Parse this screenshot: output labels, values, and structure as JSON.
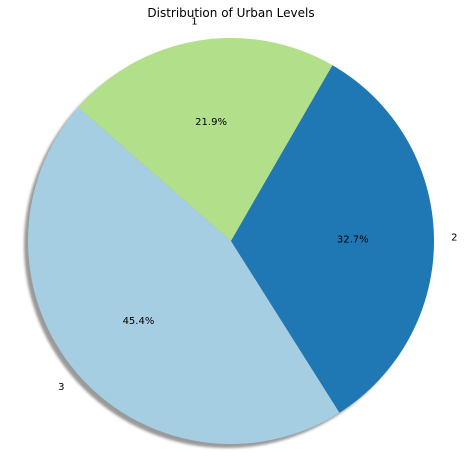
{
  "chart_data": {
    "type": "pie",
    "title": "Distribution of Urban Levels",
    "shadow": true,
    "start_angle_deg": 60,
    "direction": "counterclockwise",
    "slices": [
      {
        "label": "1",
        "value": 21.9,
        "pct_label": "21.9%",
        "color": "#b2df8a"
      },
      {
        "label": "3",
        "value": 45.4,
        "pct_label": "45.4%",
        "color": "#a6cee3"
      },
      {
        "label": "2",
        "value": 32.7,
        "pct_label": "32.7%",
        "color": "#1f78b4"
      }
    ]
  }
}
